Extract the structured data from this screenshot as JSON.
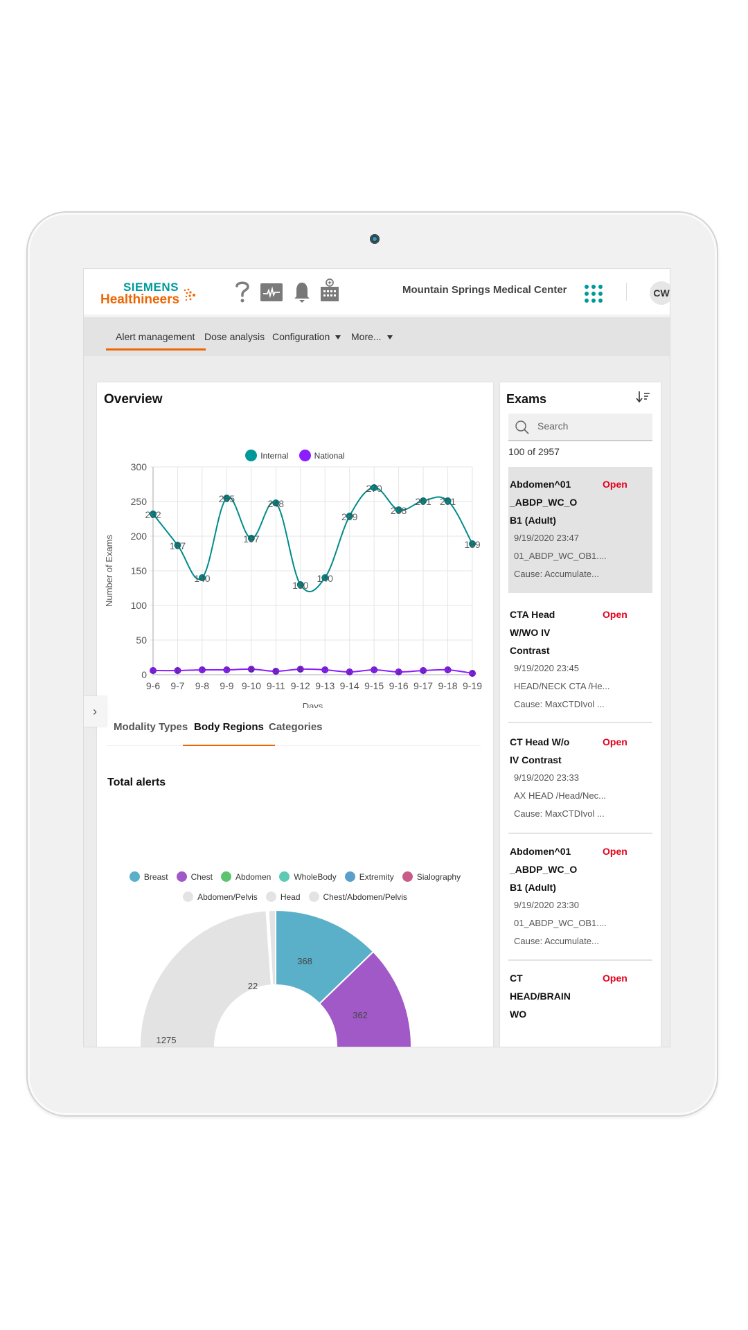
{
  "header": {
    "brand_top": "SIEMENS",
    "brand_bottom": "Healthineers",
    "facility": "Mountain Springs Medical Center",
    "user_initials": "CW",
    "icons": [
      "help-icon",
      "monitor-pulse-icon",
      "bell-icon",
      "hospital-icon",
      "apps-grid-icon"
    ]
  },
  "nav": {
    "items": [
      {
        "label": "Alert management",
        "active": true
      },
      {
        "label": "Dose analysis",
        "active": false
      },
      {
        "label": "Configuration",
        "has_caret": true
      },
      {
        "label": "More...",
        "has_caret": true
      }
    ]
  },
  "overview": {
    "title": "Overview",
    "tabs": [
      {
        "label": "Modality Types",
        "active": false
      },
      {
        "label": "Body Regions",
        "active": true
      },
      {
        "label": "Categories",
        "active": false
      }
    ],
    "section_title": "Total alerts"
  },
  "exams": {
    "title": "Exams",
    "search_placeholder": "Search",
    "count": "100 of 2957",
    "items": [
      {
        "name": "Abdomen^01_ABDP_WC_OB1 (Adult)",
        "name_lines": [
          "Abdomen^01",
          "_ABDP_WC_O",
          "B1 (Adult)"
        ],
        "status": "Open",
        "date": "9/19/2020 23:47",
        "protocol": "01_ABDP_WC_OB1....",
        "cause": "Cause: Accumulate...",
        "selected": true
      },
      {
        "name": "CTA Head W/WO IV Contrast",
        "name_lines": [
          "CTA Head",
          "W/WO IV",
          "Contrast"
        ],
        "status": "Open",
        "date": "9/19/2020 23:45",
        "protocol": "HEAD/NECK CTA /He...",
        "cause": "Cause: MaxCTDIvol ...",
        "selected": false
      },
      {
        "name": "CT Head W/o IV Contrast",
        "name_lines": [
          "CT Head W/o",
          "IV Contrast"
        ],
        "status": "Open",
        "date": "9/19/2020 23:33",
        "protocol": "AX HEAD /Head/Nec...",
        "cause": "Cause: MaxCTDIvol ...",
        "selected": false
      },
      {
        "name": "Abdomen^01_ABDP_WC_OB1 (Adult)",
        "name_lines": [
          "Abdomen^01",
          "_ABDP_WC_O",
          "B1 (Adult)"
        ],
        "status": "Open",
        "date": "9/19/2020 23:30",
        "protocol": "01_ABDP_WC_OB1....",
        "cause": "Cause: Accumulate...",
        "selected": false
      },
      {
        "name": "CT HEAD/BRAIN WO",
        "name_lines": [
          "CT",
          "HEAD/BRAIN",
          "WO"
        ],
        "status": "Open",
        "selected": false
      }
    ]
  },
  "colors": {
    "teal": "#009999",
    "orange": "#ec6602",
    "internal": "#008b8b",
    "national": "#8b1dff",
    "open_status": "#e2001a"
  },
  "chart_data": [
    {
      "type": "line",
      "title": "",
      "xlabel": "Days",
      "ylabel": "Number of Exams",
      "x": [
        "9-6",
        "9-7",
        "9-8",
        "9-9",
        "9-10",
        "9-11",
        "9-12",
        "9-13",
        "9-14",
        "9-15",
        "9-16",
        "9-17",
        "9-18",
        "9-19"
      ],
      "series": [
        {
          "name": "Internal",
          "color": "#008b8b",
          "values": [
            232,
            187,
            140,
            255,
            197,
            248,
            130,
            140,
            229,
            270,
            238,
            251,
            251,
            189
          ]
        },
        {
          "name": "National",
          "color": "#8b1dff",
          "values": [
            6,
            6,
            7,
            7,
            8,
            5,
            8,
            7,
            4,
            7,
            4,
            6,
            7,
            2
          ]
        }
      ],
      "ylim": [
        0,
        300
      ],
      "yticks": [
        0,
        50,
        100,
        150,
        200,
        250,
        300
      ],
      "grid": true,
      "legend_position": "top"
    },
    {
      "type": "pie",
      "title": "Total alerts",
      "variant": "donut",
      "legend": [
        {
          "label": "Breast",
          "color": "#5aafc9"
        },
        {
          "label": "Chest",
          "color": "#a259c8"
        },
        {
          "label": "Abdomen",
          "color": "#5cc46e"
        },
        {
          "label": "WholeBody",
          "color": "#5ec9b5"
        },
        {
          "label": "Extremity",
          "color": "#5a9fc9"
        },
        {
          "label": "Sialography",
          "color": "#c95a8a"
        },
        {
          "label": "Abdomen/Pelvis",
          "color": "#e3e3e3"
        },
        {
          "label": "Head",
          "color": "#e3e3e3"
        },
        {
          "label": "Chest/Abdomen/Pelvis",
          "color": "#e3e3e3"
        }
      ],
      "visible_slices": [
        {
          "label": "Breast",
          "value": 368,
          "color": "#5aafc9"
        },
        {
          "label": "Chest",
          "value": 362,
          "color": "#a259c8"
        },
        {
          "label": "",
          "value": 1275,
          "color": "#e3e3e3"
        },
        {
          "label": "",
          "value": 22,
          "color": "#e3e3e3"
        }
      ]
    }
  ]
}
